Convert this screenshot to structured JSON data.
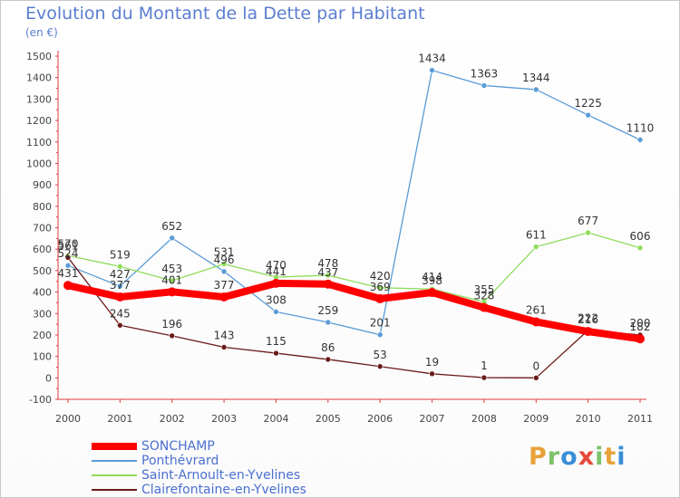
{
  "header": {
    "title": "Evolution du Montant de la Dette par Habitant",
    "unit": "(en €)"
  },
  "logo": {
    "text": "Proxiti",
    "colors": [
      "#e8a23a",
      "#7cc36a",
      "#3a8fd6",
      "#e64a3a",
      "#7cc36a",
      "#e8a23a",
      "#3a8fd6"
    ]
  },
  "chart_data": {
    "type": "line",
    "title": "Evolution du Montant de la Dette par Habitant",
    "ylabel": "(en €)",
    "xlabel": "",
    "x": [
      "2000",
      "2001",
      "2002",
      "2003",
      "2004",
      "2005",
      "2006",
      "2007",
      "2008",
      "2009",
      "2010",
      "2011"
    ],
    "yticks": [
      -100,
      0,
      100,
      200,
      300,
      400,
      500,
      600,
      700,
      800,
      900,
      1000,
      1100,
      1200,
      1300,
      1400,
      1500
    ],
    "ylim": [
      -100,
      1500
    ],
    "grid": false,
    "legend_position": "bottom-left",
    "series": [
      {
        "name": "SONCHAMP",
        "color": "#ff0000",
        "values": [
          431,
          377,
          401,
          377,
          441,
          437,
          369,
          398,
          328,
          261,
          216,
          182
        ]
      },
      {
        "name": "Ponthévrard",
        "color": "#5a9bd8",
        "values": [
          524,
          427,
          652,
          496,
          308,
          259,
          201,
          1434,
          1363,
          1344,
          1225,
          1110
        ]
      },
      {
        "name": "Saint-Arnoult-en-Yvelines",
        "color": "#8fdc5a",
        "values": [
          570,
          519,
          453,
          531,
          470,
          478,
          420,
          414,
          355,
          611,
          677,
          606
        ]
      },
      {
        "name": "Clairefontaine-en-Yvelines",
        "color": "#6b1a1a",
        "values": [
          561,
          245,
          196,
          143,
          115,
          86,
          53,
          19,
          1,
          0,
          222,
          200
        ]
      }
    ]
  }
}
